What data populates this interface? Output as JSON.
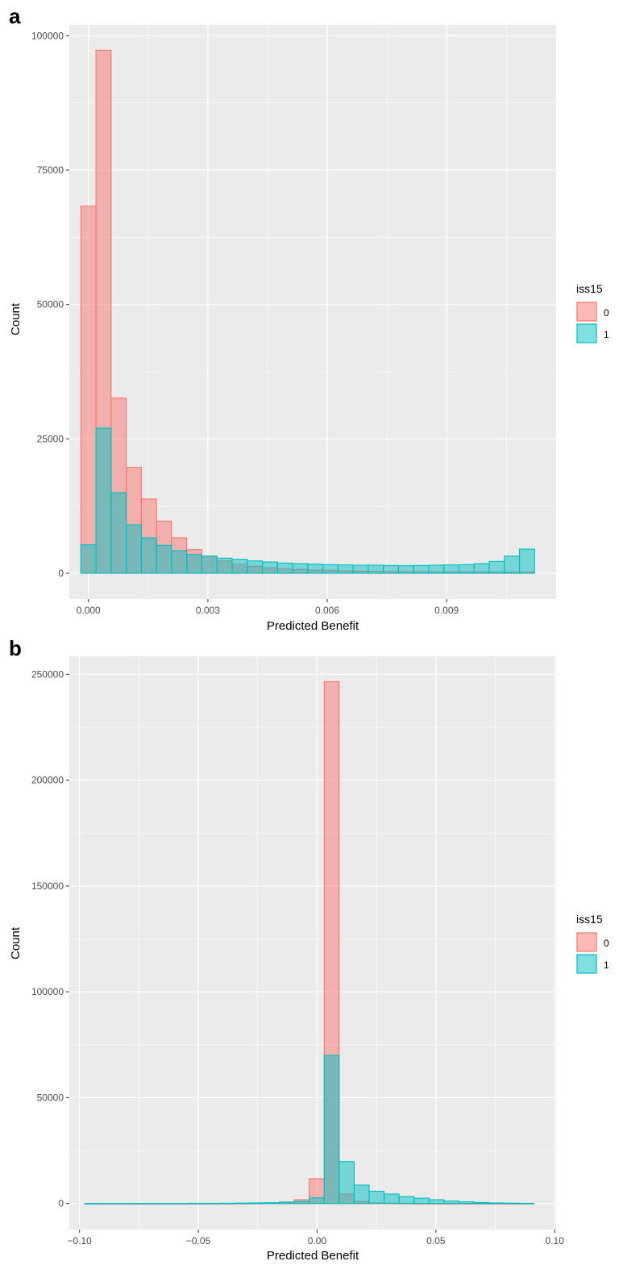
{
  "chart_data": [
    {
      "type": "bar",
      "panel_label": "a",
      "xlabel": "Predicted Benefit",
      "ylabel": "Count",
      "xlim": [
        -0.00048,
        0.01175
      ],
      "ylim": [
        -4800,
        102000
      ],
      "x_ticks": [
        0.0,
        0.003,
        0.006,
        0.009
      ],
      "x_tick_labels": [
        "0.000",
        "0.003",
        "0.006",
        "0.009"
      ],
      "y_ticks": [
        0,
        25000,
        50000,
        75000,
        100000
      ],
      "y_tick_labels": [
        "0",
        "25000",
        "50000",
        "75000",
        "100000"
      ],
      "grid": true,
      "legend": {
        "title": "iss15",
        "placement": "right",
        "entries": [
          "0",
          "1"
        ]
      },
      "bin_start": -0.00019,
      "bin_width": 0.00038,
      "series": [
        {
          "name": "0",
          "fill": "#F8766D",
          "values": [
            68300,
            97300,
            32600,
            19700,
            13800,
            9700,
            6600,
            4400,
            3200,
            2300,
            1700,
            1300,
            1000,
            800,
            700,
            600,
            500,
            450,
            400,
            350,
            330,
            300,
            280,
            260,
            250,
            240,
            230,
            220,
            220,
            210
          ]
        },
        {
          "name": "1",
          "fill": "#00BFC4",
          "values": [
            5300,
            27000,
            15000,
            9000,
            6600,
            5200,
            4200,
            3500,
            3200,
            2800,
            2600,
            2300,
            2100,
            1900,
            1800,
            1700,
            1600,
            1550,
            1500,
            1500,
            1450,
            1400,
            1450,
            1500,
            1550,
            1600,
            1800,
            2200,
            3200,
            4500
          ]
        }
      ]
    },
    {
      "type": "bar",
      "panel_label": "b",
      "xlabel": "Predicted Benefit",
      "ylabel": "Count",
      "xlim": [
        -0.1043,
        0.1006
      ],
      "ylim": [
        -12300,
        258500
      ],
      "x_ticks": [
        -0.1,
        -0.05,
        0.0,
        0.05,
        0.1
      ],
      "x_tick_labels": [
        "−0.10",
        "−0.05",
        "0.00",
        "0.05",
        "0.10"
      ],
      "y_ticks": [
        0,
        50000,
        100000,
        150000,
        200000,
        250000
      ],
      "y_tick_labels": [
        "0",
        "50000",
        "100000",
        "150000",
        "200000",
        "250000"
      ],
      "grid": true,
      "legend": {
        "title": "iss15",
        "placement": "right",
        "entries": [
          "0",
          "1"
        ]
      },
      "bin_start": -0.0978,
      "bin_width": 0.0063,
      "series": [
        {
          "name": "0",
          "fill": "#F8766D",
          "values": [
            0,
            0,
            0,
            0,
            0,
            0,
            0,
            0,
            0,
            0,
            50,
            100,
            200,
            600,
            1800,
            11700,
            246500,
            4500,
            1000,
            300,
            150,
            100,
            50,
            0,
            0,
            0,
            0,
            0,
            0,
            0
          ]
        },
        {
          "name": "1",
          "fill": "#00BFC4",
          "values": [
            50,
            50,
            50,
            50,
            50,
            50,
            50,
            100,
            100,
            150,
            200,
            300,
            400,
            700,
            1000,
            2700,
            70000,
            19800,
            8700,
            5800,
            4500,
            3300,
            2500,
            1800,
            1200,
            800,
            500,
            300,
            200,
            100
          ]
        }
      ]
    }
  ]
}
